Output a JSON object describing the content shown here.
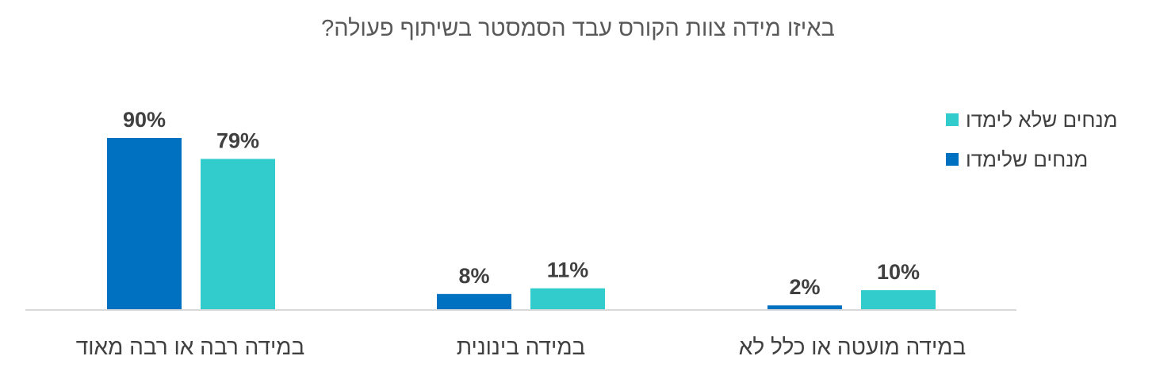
{
  "chart_data": {
    "type": "bar",
    "title": "באיזו מידה צוות הקורס עבד הסמסטר בשיתוף פעולה?",
    "categories": [
      "במידה רבה או רבה מאוד",
      "במידה בינונית",
      "במידה מועטה או כלל לא"
    ],
    "series": [
      {
        "name": "מנחים שלימדו",
        "values": [
          90,
          8,
          2
        ],
        "labels": [
          "90%",
          "8%",
          "2%"
        ],
        "color": "#0070C0"
      },
      {
        "name": "מנחים שלא לימדו",
        "values": [
          79,
          11,
          10
        ],
        "labels": [
          "79%",
          "11%",
          "10%"
        ],
        "color": "#33CCCC"
      }
    ],
    "ylim": [
      0,
      100
    ],
    "grid": false,
    "legend_position": "right",
    "legend_order": [
      "מנחים שלא לימדו",
      "מנחים שלימדו"
    ],
    "axis_color": "#D9D9D9",
    "label_color": "#404040"
  }
}
